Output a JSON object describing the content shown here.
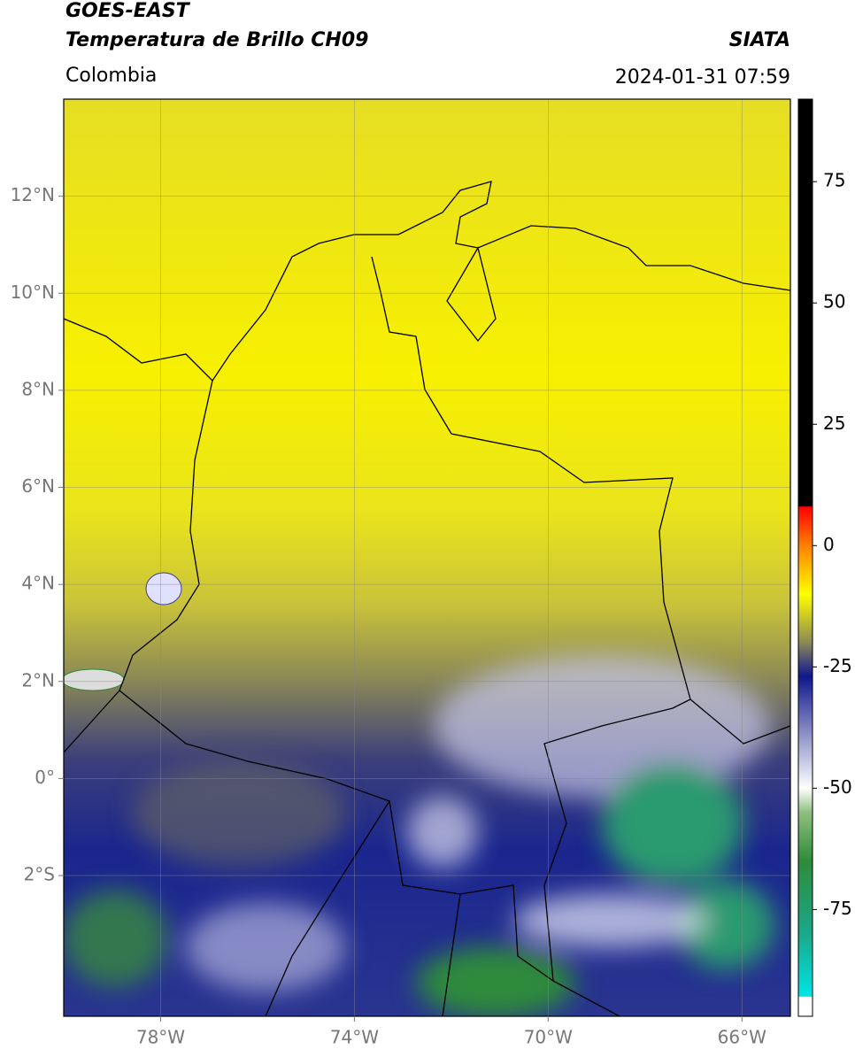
{
  "header": {
    "satellite": "GOES-EAST",
    "product": "Temperatura de Brillo CH09",
    "source": "SIATA",
    "region": "Colombia",
    "datetime": "2024-01-31 07:59"
  },
  "map": {
    "xlim": [
      -80,
      -65
    ],
    "ylim": [
      -4.9,
      14
    ],
    "xticks": [
      {
        "value": -78,
        "label": "78°W"
      },
      {
        "value": -74,
        "label": "74°W"
      },
      {
        "value": -70,
        "label": "70°W"
      },
      {
        "value": -66,
        "label": "66°W"
      }
    ],
    "yticks": [
      {
        "value": 12,
        "label": "12°N"
      },
      {
        "value": 10,
        "label": "10°N"
      },
      {
        "value": 8,
        "label": "8°N"
      },
      {
        "value": 6,
        "label": "6°N"
      },
      {
        "value": 4,
        "label": "4°N"
      },
      {
        "value": 2,
        "label": "2°N"
      },
      {
        "value": 0,
        "label": "0°"
      },
      {
        "value": -2,
        "label": "2°S"
      }
    ],
    "grid": true
  },
  "colorbar": {
    "lim": [
      -97,
      92
    ],
    "ticks": [
      75,
      50,
      25,
      0,
      -25,
      -50,
      -75
    ],
    "stops": [
      {
        "value": -97,
        "color": "#ffffff"
      },
      {
        "value": -93,
        "color": "#ffffff"
      },
      {
        "value": -92.9,
        "color": "#00e5e5"
      },
      {
        "value": -80,
        "color": "#1aa88a"
      },
      {
        "value": -65,
        "color": "#2e8b3a"
      },
      {
        "value": -55,
        "color": "#8fbf80"
      },
      {
        "value": -50,
        "color": "#ffffff"
      },
      {
        "value": -40,
        "color": "#9a9ccc"
      },
      {
        "value": -27,
        "color": "#10188c"
      },
      {
        "value": -24,
        "color": "#44447a"
      },
      {
        "value": -20,
        "color": "#8a8a55"
      },
      {
        "value": -10,
        "color": "#ffff00"
      },
      {
        "value": 0,
        "color": "#ff8000"
      },
      {
        "value": 8,
        "color": "#ff0000"
      },
      {
        "value": 8.1,
        "color": "#000000"
      },
      {
        "value": 92,
        "color": "#000000"
      }
    ]
  }
}
